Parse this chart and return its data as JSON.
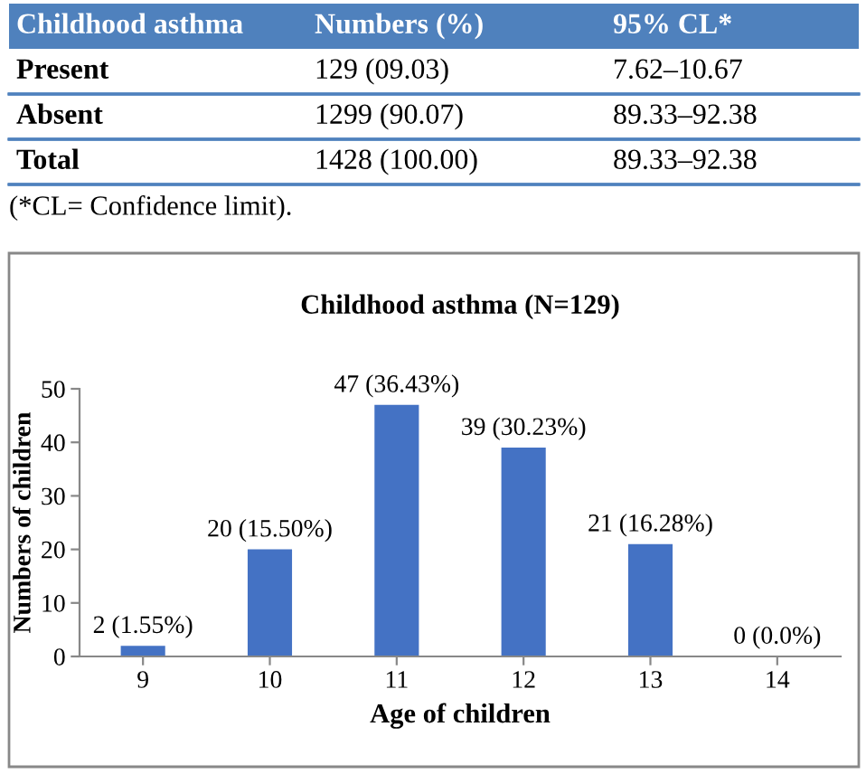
{
  "chart_data": [
    {
      "type": "other",
      "annotations": [
        "Childhood asthma",
        "Numbers (%)",
        "95% CL*",
        "Present",
        "129 (09.03)",
        "7.62–10.67",
        "Absent",
        "1299 (90.07)",
        "89.33–92.38",
        "Total",
        "1428 (100.00)",
        "89.33–92.38",
        "(*CL= Confidence limit)."
      ]
    },
    {
      "type": "bar",
      "title": "Childhood asthma (N=129)",
      "xlabel": "Age of children",
      "ylabel": "Numbers of children",
      "categories": [
        "9",
        "10",
        "11",
        "12",
        "13",
        "14"
      ],
      "values": [
        2,
        20,
        47,
        39,
        21,
        0
      ],
      "color": "#4472c4",
      "value_labels": [
        "2 (1.55%)",
        "20 (15.50%)",
        "47 (36.43%)",
        "39 (30.23%)",
        "21 (16.28%)",
        "0 (0.0%)"
      ],
      "ylim": [
        0,
        50
      ],
      "yticks": [
        0,
        10,
        20,
        30,
        40,
        50
      ],
      "grid": false,
      "legend": false
    }
  ]
}
